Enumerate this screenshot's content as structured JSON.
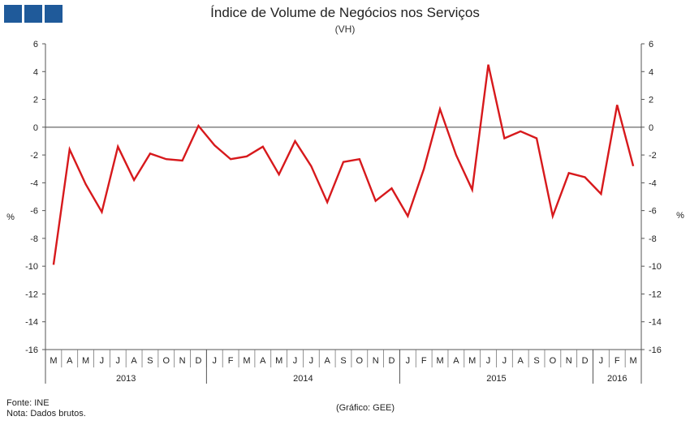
{
  "logo": {
    "color": "#1f5a9a",
    "squares": 3
  },
  "header": {
    "title": "Índice de Volume de Negócios nos Serviços",
    "subtitle": "(VH)"
  },
  "footer": {
    "source": "Fonte: INE",
    "note": "Nota: Dados brutos.",
    "credit": "(Gráfico: GEE)"
  },
  "chart_data": {
    "type": "line",
    "ylabel_left": "%",
    "ylabel_right": "%",
    "ylim": [
      -16,
      6
    ],
    "yticks": [
      6,
      4,
      2,
      0,
      -2,
      -4,
      -6,
      -8,
      -10,
      -12,
      -14,
      -16
    ],
    "grid": false,
    "zero_line": true,
    "line_color": "#d7191c",
    "month_labels": [
      "M",
      "A",
      "M",
      "J",
      "J",
      "A",
      "S",
      "O",
      "N",
      "D",
      "J",
      "F",
      "M",
      "A",
      "M",
      "J",
      "J",
      "A",
      "S",
      "O",
      "N",
      "D",
      "J",
      "F",
      "M",
      "A",
      "M",
      "J",
      "J",
      "A",
      "S",
      "O",
      "N",
      "D",
      "J",
      "F",
      "M"
    ],
    "years": [
      {
        "label": "2013",
        "start": 0,
        "end": 10
      },
      {
        "label": "2014",
        "start": 10,
        "end": 22
      },
      {
        "label": "2015",
        "start": 22,
        "end": 34
      },
      {
        "label": "2016",
        "start": 34,
        "end": 37
      }
    ],
    "series": [
      {
        "values": [
          -9.9,
          -1.6,
          -4.1,
          -6.1,
          -1.4,
          -3.8,
          -1.9,
          -2.3,
          -2.4,
          0.1,
          -1.3,
          -2.3,
          -2.1,
          -1.4,
          -3.4,
          -1.0,
          -2.8,
          -5.4,
          -2.5,
          -2.3,
          -5.3,
          -4.4,
          -6.4,
          -3.0,
          1.3,
          -2.0,
          -4.5,
          4.5,
          -0.8,
          -0.3,
          -0.8,
          -6.4,
          -3.3,
          -3.6,
          -4.8,
          1.6,
          -2.8
        ]
      }
    ]
  }
}
